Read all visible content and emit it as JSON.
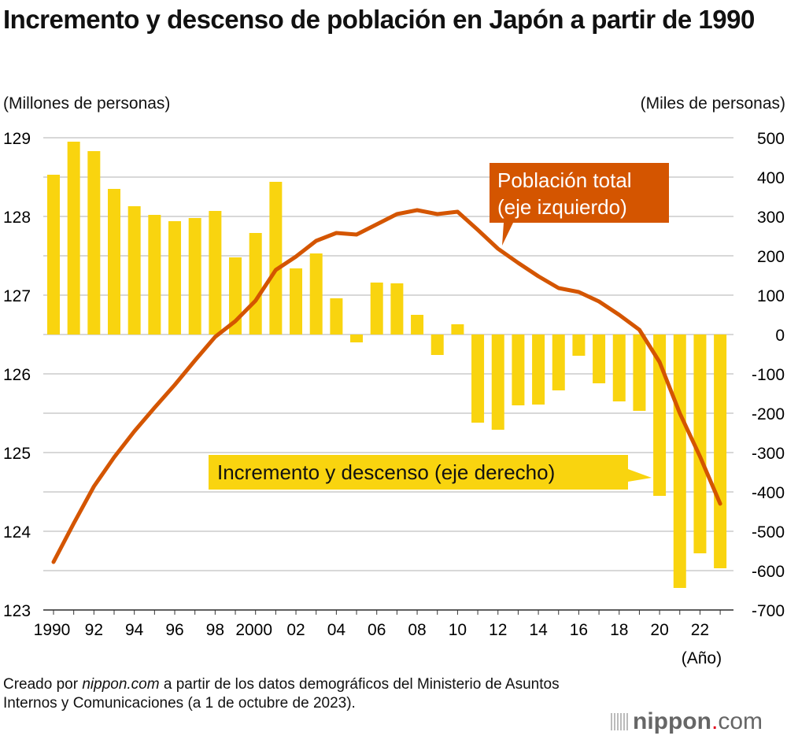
{
  "title": "Incremento y descenso de población en Japón a partir de 1990",
  "left_unit": "(Millones de personas)",
  "right_unit": "(Miles de personas)",
  "x_unit": "(Año)",
  "footer": {
    "prefix": "Creado por ",
    "source": "nippon.com",
    "suffix": " a partir de los datos demográficos del Ministerio de Asuntos Internos y Comunicaciones (a 1 de octubre de 2023)."
  },
  "logo": {
    "text_main": "nippon",
    "dot": ".",
    "text_tail": "com"
  },
  "colors": {
    "bar": "#f9d40f",
    "line": "#d45500",
    "grid": "#cccccc"
  },
  "chart_data": {
    "type": "bar+line",
    "title": "Incremento y descenso de población en Japón a partir de 1990",
    "x": [
      1990,
      1991,
      1992,
      1993,
      1994,
      1995,
      1996,
      1997,
      1998,
      1999,
      2000,
      2001,
      2002,
      2003,
      2004,
      2005,
      2006,
      2007,
      2008,
      2009,
      2010,
      2011,
      2012,
      2013,
      2014,
      2015,
      2016,
      2017,
      2018,
      2019,
      2020,
      2021,
      2022,
      2023
    ],
    "x_tick_labels": [
      {
        "year": 1990,
        "label": "1990"
      },
      {
        "year": 1992,
        "label": "92"
      },
      {
        "year": 1994,
        "label": "94"
      },
      {
        "year": 1996,
        "label": "96"
      },
      {
        "year": 1998,
        "label": "98"
      },
      {
        "year": 2000,
        "label": "2000"
      },
      {
        "year": 2002,
        "label": "02"
      },
      {
        "year": 2004,
        "label": "04"
      },
      {
        "year": 2006,
        "label": "06"
      },
      {
        "year": 2008,
        "label": "08"
      },
      {
        "year": 2010,
        "label": "10"
      },
      {
        "year": 2012,
        "label": "12"
      },
      {
        "year": 2014,
        "label": "14"
      },
      {
        "year": 2016,
        "label": "16"
      },
      {
        "year": 2018,
        "label": "18"
      },
      {
        "year": 2020,
        "label": "20"
      },
      {
        "year": 2022,
        "label": "22"
      }
    ],
    "left_axis": {
      "label": "(Millones de personas)",
      "range": [
        123,
        129
      ],
      "ticks": [
        "123",
        "124",
        "125",
        "126",
        "127",
        "128",
        "129"
      ]
    },
    "right_axis": {
      "label": "(Miles de personas)",
      "range": [
        -700,
        500
      ],
      "ticks": [
        "-700",
        "-600",
        "-500",
        "-400",
        "-300",
        "-200",
        "-100",
        "0",
        "100",
        "200",
        "300",
        "400",
        "500"
      ]
    },
    "grid": true,
    "series": [
      {
        "name": "Incremento y descenso (eje derecho)",
        "type": "bar",
        "axis": "right",
        "values": [
          406,
          490,
          466,
          370,
          326,
          304,
          288,
          296,
          314,
          196,
          258,
          388,
          168,
          206,
          92,
          -20,
          132,
          130,
          50,
          -52,
          26,
          -224,
          -242,
          -180,
          -178,
          -142,
          -54,
          -124,
          -170,
          -194,
          -410,
          -644,
          -556,
          -594
        ]
      },
      {
        "name": "Población total (eje izquierdo)",
        "type": "line",
        "axis": "left",
        "values": [
          123.61,
          124.1,
          124.57,
          124.94,
          125.27,
          125.57,
          125.86,
          126.17,
          126.47,
          126.67,
          126.93,
          127.32,
          127.49,
          127.69,
          127.79,
          127.77,
          127.9,
          128.03,
          128.08,
          128.03,
          128.06,
          127.83,
          127.59,
          127.41,
          127.24,
          127.09,
          127.04,
          126.92,
          126.75,
          126.56,
          126.15,
          125.5,
          124.95,
          124.35
        ]
      }
    ],
    "annotations": [
      "Población total",
      "(eje izquierdo)",
      "Incremento y descenso (eje derecho)"
    ]
  }
}
